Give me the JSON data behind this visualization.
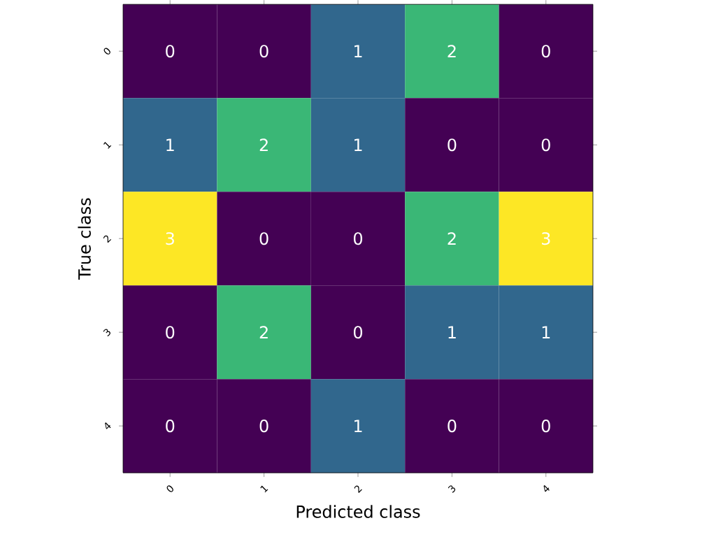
{
  "chart_data": {
    "type": "heatmap",
    "xlabel": "Predicted class",
    "ylabel": "True class",
    "categories": [
      "0",
      "1",
      "2",
      "3",
      "4"
    ],
    "y_categories": [
      "0",
      "1",
      "2",
      "3",
      "4"
    ],
    "cells": [
      [
        0,
        0,
        1,
        2,
        0
      ],
      [
        1,
        2,
        1,
        0,
        0
      ],
      [
        3,
        0,
        0,
        2,
        3
      ],
      [
        0,
        2,
        0,
        1,
        1
      ],
      [
        0,
        0,
        1,
        0,
        0
      ]
    ],
    "data_labels": true
  }
}
